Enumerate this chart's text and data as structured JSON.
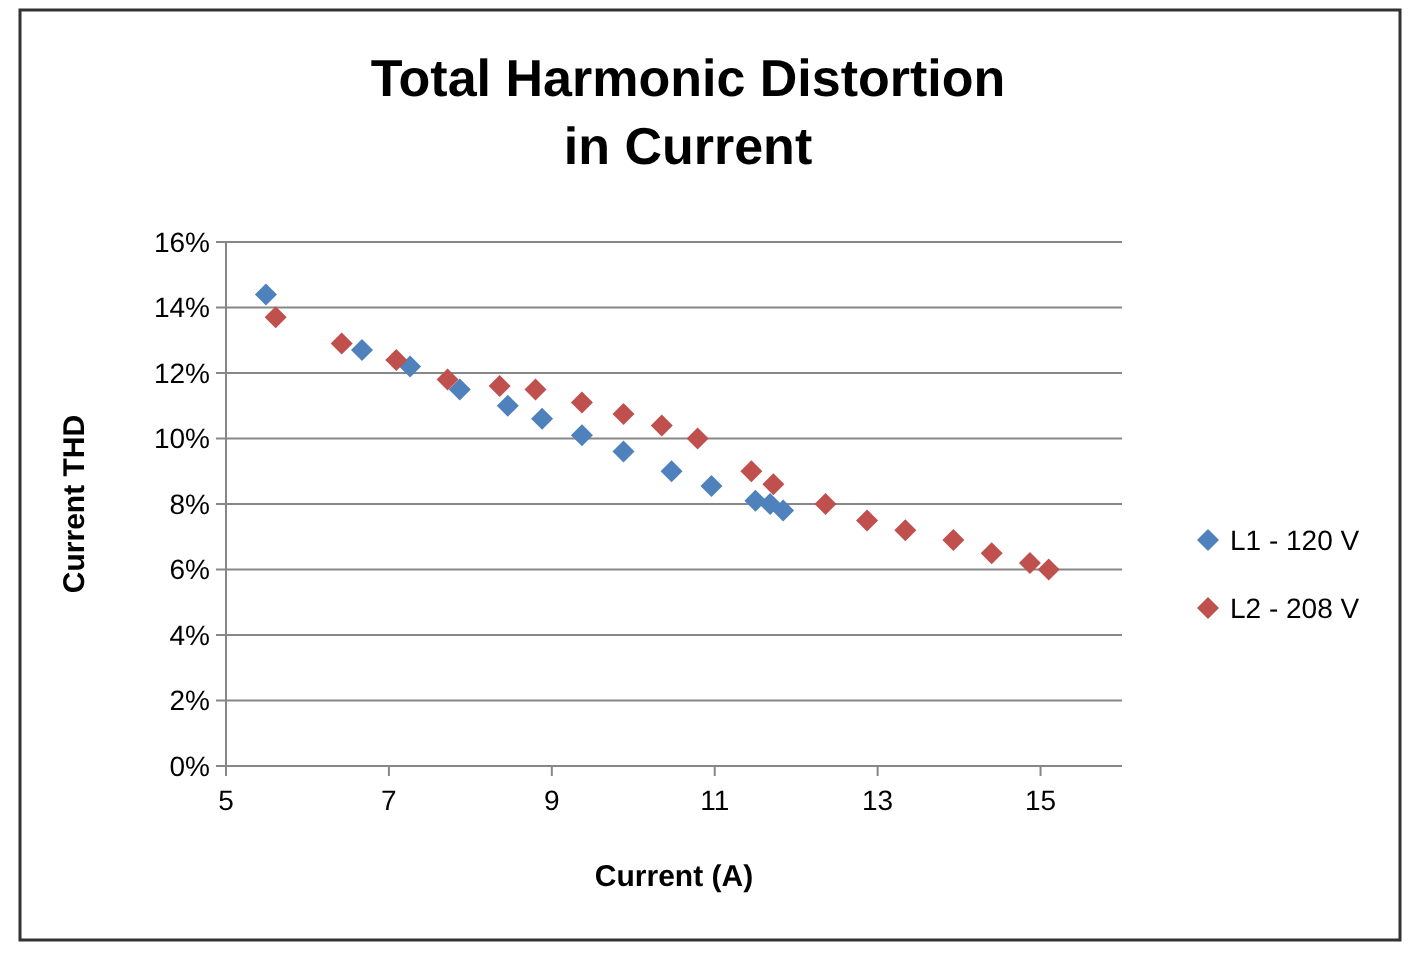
{
  "chart_data": {
    "type": "scatter",
    "title": "Total Harmonic Distortion\nin Current",
    "xlabel": "Current (A)",
    "ylabel": "Current THD",
    "xlim": [
      5,
      16
    ],
    "xticks": [
      5,
      7,
      9,
      11,
      13,
      15
    ],
    "ylim": [
      0,
      16
    ],
    "yticks": [
      {
        "value": 0,
        "label": "0%"
      },
      {
        "value": 2,
        "label": "2%"
      },
      {
        "value": 4,
        "label": "4%"
      },
      {
        "value": 6,
        "label": "6%"
      },
      {
        "value": 8,
        "label": "8%"
      },
      {
        "value": 10,
        "label": "10%"
      },
      {
        "value": 12,
        "label": "12%"
      },
      {
        "value": 14,
        "label": "14%"
      },
      {
        "value": 16,
        "label": "16%"
      }
    ],
    "grid": "y",
    "legend": "right",
    "marker": "diamond",
    "series": [
      {
        "name": "L1 - 120 V",
        "color": "#4f81bd",
        "x": [
          5.49,
          6.67,
          7.26,
          7.87,
          8.46,
          8.88,
          9.37,
          9.88,
          10.47,
          10.96,
          11.5,
          11.68,
          11.84
        ],
        "values": [
          14.4,
          12.7,
          12.2,
          11.5,
          11.0,
          10.6,
          10.1,
          9.6,
          9.0,
          8.55,
          8.1,
          8.0,
          7.8
        ]
      },
      {
        "name": "L2 - 208 V",
        "color": "#c0504d",
        "x": [
          5.61,
          6.42,
          7.09,
          7.72,
          8.36,
          8.8,
          9.37,
          9.88,
          10.35,
          10.79,
          11.45,
          11.72,
          12.36,
          12.87,
          13.34,
          13.93,
          14.4,
          14.87,
          15.1
        ],
        "values": [
          13.7,
          12.9,
          12.4,
          11.8,
          11.6,
          11.5,
          11.1,
          10.75,
          10.4,
          10.0,
          9.0,
          8.6,
          8.0,
          7.5,
          7.2,
          6.9,
          6.5,
          6.2,
          6.0
        ]
      }
    ]
  }
}
